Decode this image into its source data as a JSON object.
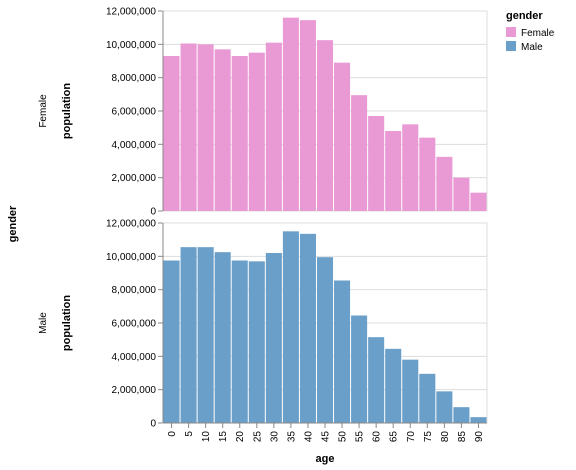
{
  "chart_data": {
    "type": "bar",
    "faceted_by": "gender",
    "facet_title": "gender",
    "xlabel": "age",
    "ylabel": "population",
    "categories": [
      "0",
      "5",
      "10",
      "15",
      "20",
      "25",
      "30",
      "35",
      "40",
      "45",
      "50",
      "55",
      "60",
      "65",
      "70",
      "75",
      "80",
      "85",
      "90"
    ],
    "yticks": [
      "0",
      "2,000,000",
      "4,000,000",
      "6,000,000",
      "8,000,000",
      "10,000,000",
      "12,000,000"
    ],
    "ylim": [
      0,
      12000000
    ],
    "grid": true,
    "legend": {
      "title": "gender",
      "position": "top-right"
    },
    "series": [
      {
        "name": "Female",
        "color": "#e99ad5",
        "values": [
          9300000,
          10050000,
          10000000,
          9700000,
          9300000,
          9500000,
          10100000,
          11600000,
          11450000,
          10250000,
          8900000,
          6950000,
          5700000,
          4800000,
          5200000,
          4400000,
          3250000,
          2000000,
          1100000
        ]
      },
      {
        "name": "Male",
        "color": "#6a9fca",
        "values": [
          9750000,
          10550000,
          10550000,
          10250000,
          9750000,
          9700000,
          10200000,
          11500000,
          11350000,
          9950000,
          8550000,
          6450000,
          5150000,
          4450000,
          3800000,
          2950000,
          1900000,
          950000,
          350000
        ]
      }
    ]
  }
}
